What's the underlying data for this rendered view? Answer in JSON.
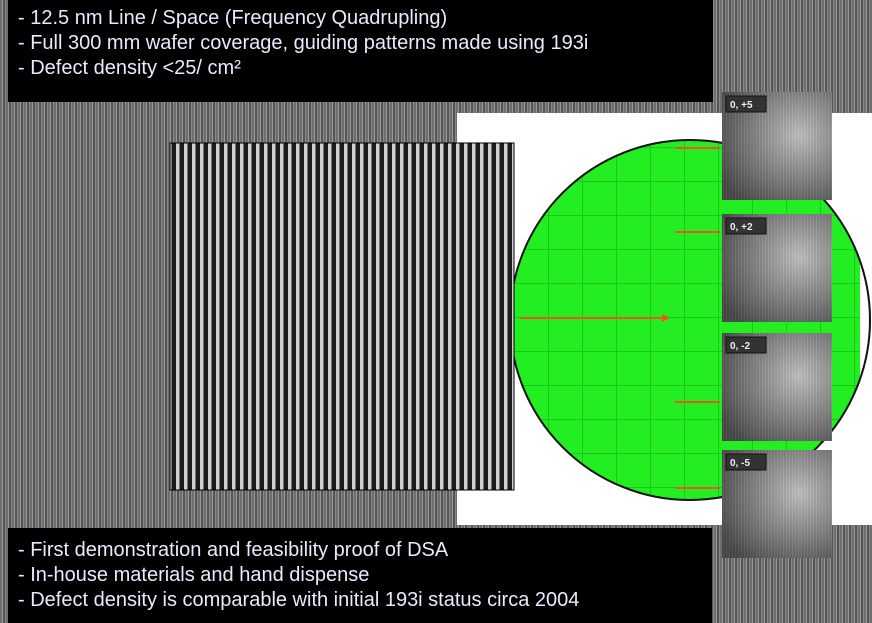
{
  "top_box": {
    "lines": [
      "- 12.5 nm Line / Space (Frequency Quadrupling)",
      "- Full 300 mm wafer coverage, guiding patterns made using 193i",
      "- Defect density <25/ cm²"
    ]
  },
  "insets": {
    "labels": [
      "0, +5",
      "0, +2",
      "0, -2",
      "0, -5"
    ]
  },
  "bottom_box": {
    "lines": [
      "- First demonstration and feasibility proof of DSA",
      "- In-house materials and hand dispense",
      "- Defect density is comparable with initial 193i status circa 2004"
    ]
  }
}
